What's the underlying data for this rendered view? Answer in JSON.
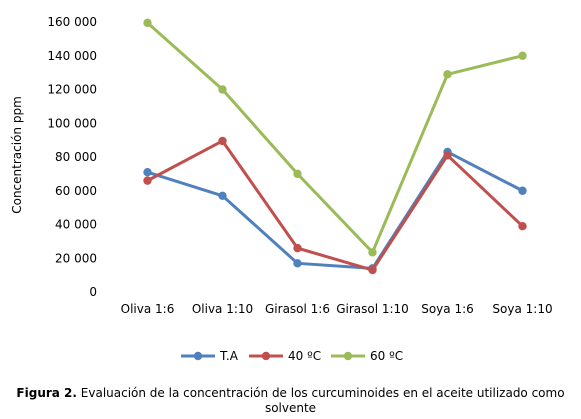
{
  "chart_data": {
    "type": "line",
    "categories": [
      "Oliva 1:6",
      "Oliva 1:10",
      "Girasol 1:6",
      "Girasol 1:10",
      "Soya 1:6",
      "Soya 1:10"
    ],
    "series": [
      {
        "name": "T.A",
        "color": "#4f81bd",
        "values": [
          71000,
          57000,
          17000,
          14000,
          83000,
          60000
        ]
      },
      {
        "name": "40 ºC",
        "color": "#c0504d",
        "values": [
          66000,
          89500,
          26000,
          13000,
          81000,
          39000
        ]
      },
      {
        "name": "60 ºC",
        "color": "#9bbb59",
        "values": [
          159500,
          120000,
          70000,
          23500,
          129000,
          140000
        ]
      }
    ],
    "ylabel": "Concentración  ppm",
    "xlabel": "",
    "ylim": [
      0,
      160000
    ],
    "yticks": [
      0,
      20000,
      40000,
      60000,
      80000,
      100000,
      120000,
      140000,
      160000
    ],
    "ytick_labels": [
      "0",
      "20 000",
      "40 000",
      "60 000",
      "80 000",
      "100 000",
      "120 000",
      "140 000",
      "160 000"
    ],
    "grid": false,
    "legend_position": "bottom"
  },
  "caption": {
    "label": "Figura 2.",
    "text": " Evaluación de la concentración de los curcuminoides en el aceite utilizado como solvente"
  }
}
